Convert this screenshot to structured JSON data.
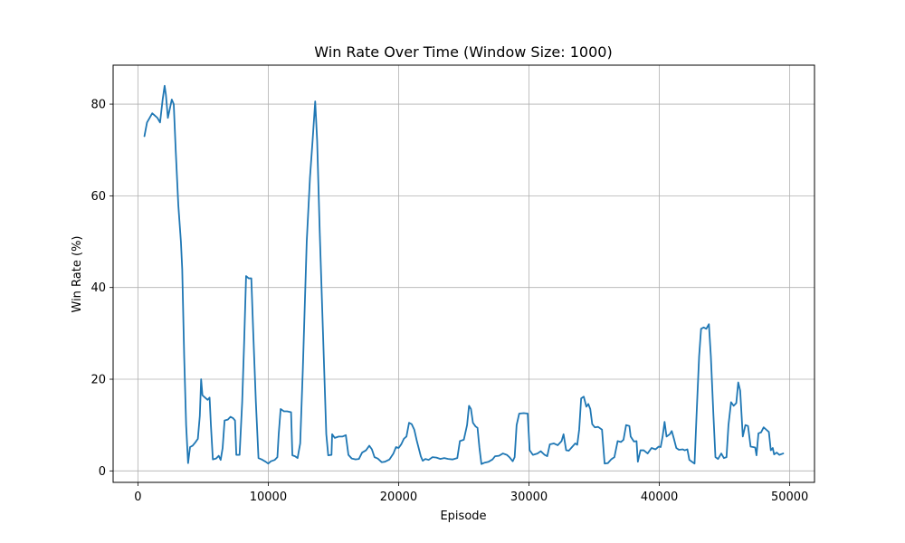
{
  "chart_data": {
    "type": "line",
    "title": "Win Rate Over Time (Window Size: 1000)",
    "xlabel": "Episode",
    "ylabel": "Win Rate (%)",
    "xlim": [
      -1900,
      51900
    ],
    "ylim": [
      -2.5,
      88.5
    ],
    "xticks": [
      0,
      10000,
      20000,
      30000,
      40000,
      50000
    ],
    "yticks": [
      0,
      20,
      40,
      60,
      80
    ],
    "grid": true,
    "line_color": "#1f77b4",
    "series": [
      {
        "name": "",
        "points": [
          [
            500,
            73
          ],
          [
            700,
            76
          ],
          [
            900,
            77
          ],
          [
            1100,
            78
          ],
          [
            1300,
            77.5
          ],
          [
            1500,
            77
          ],
          [
            1700,
            76
          ],
          [
            1900,
            81
          ],
          [
            2050,
            84
          ],
          [
            2150,
            82
          ],
          [
            2300,
            77
          ],
          [
            2450,
            79
          ],
          [
            2600,
            81
          ],
          [
            2750,
            80
          ],
          [
            2900,
            70
          ],
          [
            3100,
            58
          ],
          [
            3300,
            50
          ],
          [
            3400,
            44
          ],
          [
            3550,
            25
          ],
          [
            3700,
            10
          ],
          [
            3850,
            1.7
          ],
          [
            4000,
            5.2
          ],
          [
            4200,
            5.5
          ],
          [
            4400,
            6.2
          ],
          [
            4600,
            7
          ],
          [
            4750,
            12
          ],
          [
            4850,
            20
          ],
          [
            4950,
            16.5
          ],
          [
            5150,
            16
          ],
          [
            5350,
            15.5
          ],
          [
            5500,
            16
          ],
          [
            5600,
            10
          ],
          [
            5750,
            2.5
          ],
          [
            6000,
            2.7
          ],
          [
            6200,
            3.3
          ],
          [
            6350,
            2.4
          ],
          [
            6500,
            5
          ],
          [
            6650,
            11
          ],
          [
            6900,
            11.2
          ],
          [
            7100,
            11.8
          ],
          [
            7300,
            11.5
          ],
          [
            7450,
            11
          ],
          [
            7550,
            3.5
          ],
          [
            7800,
            3.5
          ],
          [
            8000,
            15
          ],
          [
            8150,
            28
          ],
          [
            8300,
            42.5
          ],
          [
            8500,
            42
          ],
          [
            8700,
            42
          ],
          [
            8850,
            30
          ],
          [
            9050,
            15
          ],
          [
            9250,
            2.8
          ],
          [
            9500,
            2.5
          ],
          [
            9800,
            2
          ],
          [
            10000,
            1.6
          ],
          [
            10200,
            2.1
          ],
          [
            10500,
            2.4
          ],
          [
            10700,
            3
          ],
          [
            10800,
            8
          ],
          [
            10950,
            13.5
          ],
          [
            11200,
            13
          ],
          [
            11450,
            13
          ],
          [
            11750,
            12.8
          ],
          [
            11850,
            3.4
          ],
          [
            12050,
            3.2
          ],
          [
            12250,
            2.8
          ],
          [
            12450,
            6
          ],
          [
            12650,
            22
          ],
          [
            12950,
            50
          ],
          [
            13200,
            64
          ],
          [
            13400,
            72
          ],
          [
            13600,
            80.6
          ],
          [
            13750,
            72
          ],
          [
            13950,
            52
          ],
          [
            14200,
            30
          ],
          [
            14450,
            8
          ],
          [
            14600,
            3.4
          ],
          [
            14850,
            3.5
          ],
          [
            14900,
            8
          ],
          [
            15100,
            7.2
          ],
          [
            15400,
            7.5
          ],
          [
            15700,
            7.5
          ],
          [
            15950,
            7.8
          ],
          [
            16150,
            3.5
          ],
          [
            16400,
            2.7
          ],
          [
            16700,
            2.5
          ],
          [
            16950,
            2.6
          ],
          [
            17200,
            4
          ],
          [
            17500,
            4.5
          ],
          [
            17750,
            5.5
          ],
          [
            17950,
            4.7
          ],
          [
            18150,
            3
          ],
          [
            18400,
            2.7
          ],
          [
            18700,
            1.9
          ],
          [
            18950,
            2
          ],
          [
            19300,
            2.5
          ],
          [
            19600,
            3.8
          ],
          [
            19800,
            5.2
          ],
          [
            20000,
            5
          ],
          [
            20200,
            5.8
          ],
          [
            20400,
            7
          ],
          [
            20600,
            7.5
          ],
          [
            20800,
            10.5
          ],
          [
            21000,
            10.2
          ],
          [
            21200,
            9
          ],
          [
            21400,
            6.5
          ],
          [
            21700,
            3.2
          ],
          [
            21850,
            2.2
          ],
          [
            22050,
            2.6
          ],
          [
            22300,
            2.4
          ],
          [
            22600,
            3
          ],
          [
            22900,
            2.9
          ],
          [
            23200,
            2.6
          ],
          [
            23500,
            2.8
          ],
          [
            23800,
            2.6
          ],
          [
            24150,
            2.5
          ],
          [
            24500,
            2.8
          ],
          [
            24700,
            6.5
          ],
          [
            25000,
            6.8
          ],
          [
            25250,
            10
          ],
          [
            25400,
            14.2
          ],
          [
            25550,
            13.5
          ],
          [
            25700,
            10.5
          ],
          [
            25900,
            9.7
          ],
          [
            26050,
            9.4
          ],
          [
            26200,
            5
          ],
          [
            26350,
            1.5
          ],
          [
            26600,
            1.8
          ],
          [
            26900,
            2
          ],
          [
            27200,
            2.5
          ],
          [
            27400,
            3.2
          ],
          [
            27700,
            3.3
          ],
          [
            28000,
            3.8
          ],
          [
            28300,
            3.5
          ],
          [
            28500,
            3
          ],
          [
            28750,
            2.1
          ],
          [
            28900,
            3
          ],
          [
            29050,
            10
          ],
          [
            29250,
            12.5
          ],
          [
            29600,
            12.6
          ],
          [
            29900,
            12.5
          ],
          [
            30050,
            4.5
          ],
          [
            30300,
            3.5
          ],
          [
            30650,
            3.8
          ],
          [
            30900,
            4.3
          ],
          [
            31200,
            3.5
          ],
          [
            31400,
            3.2
          ],
          [
            31600,
            5.8
          ],
          [
            31900,
            6
          ],
          [
            32200,
            5.6
          ],
          [
            32500,
            6.5
          ],
          [
            32650,
            8
          ],
          [
            32850,
            4.5
          ],
          [
            33050,
            4.4
          ],
          [
            33300,
            5.2
          ],
          [
            33550,
            6
          ],
          [
            33700,
            5.7
          ],
          [
            33850,
            9
          ],
          [
            34000,
            15.8
          ],
          [
            34200,
            16.2
          ],
          [
            34400,
            14
          ],
          [
            34550,
            14.6
          ],
          [
            34700,
            13.5
          ],
          [
            34850,
            10.2
          ],
          [
            35050,
            9.5
          ],
          [
            35300,
            9.6
          ],
          [
            35600,
            9
          ],
          [
            35800,
            1.6
          ],
          [
            36050,
            1.7
          ],
          [
            36300,
            2.5
          ],
          [
            36550,
            3
          ],
          [
            36800,
            6.5
          ],
          [
            37050,
            6.3
          ],
          [
            37250,
            6.8
          ],
          [
            37450,
            10
          ],
          [
            37700,
            9.8
          ],
          [
            37800,
            7.5
          ],
          [
            38050,
            6.4
          ],
          [
            38250,
            6.5
          ],
          [
            38350,
            2
          ],
          [
            38550,
            4.5
          ],
          [
            38800,
            4.5
          ],
          [
            39100,
            3.8
          ],
          [
            39400,
            5
          ],
          [
            39700,
            4.7
          ],
          [
            39950,
            5.3
          ],
          [
            40100,
            5.2
          ],
          [
            40250,
            7.5
          ],
          [
            40400,
            10.7
          ],
          [
            40550,
            7.5
          ],
          [
            40800,
            8
          ],
          [
            40950,
            8.7
          ],
          [
            41100,
            7.2
          ],
          [
            41300,
            5
          ],
          [
            41500,
            4.6
          ],
          [
            41800,
            4.7
          ],
          [
            41950,
            4.5
          ],
          [
            42150,
            4.7
          ],
          [
            42300,
            2.4
          ],
          [
            42550,
            1.9
          ],
          [
            42700,
            1.6
          ],
          [
            42850,
            12
          ],
          [
            43050,
            25
          ],
          [
            43200,
            31
          ],
          [
            43400,
            31.3
          ],
          [
            43600,
            31
          ],
          [
            43800,
            32
          ],
          [
            43950,
            25
          ],
          [
            44150,
            12
          ],
          [
            44300,
            3
          ],
          [
            44500,
            2.6
          ],
          [
            44750,
            3.8
          ],
          [
            44950,
            2.8
          ],
          [
            45150,
            3
          ],
          [
            45300,
            10
          ],
          [
            45500,
            15
          ],
          [
            45700,
            14.2
          ],
          [
            45900,
            14.8
          ],
          [
            46050,
            19.3
          ],
          [
            46200,
            17.5
          ],
          [
            46400,
            7.5
          ],
          [
            46600,
            10
          ],
          [
            46800,
            9.8
          ],
          [
            47000,
            5.3
          ],
          [
            47200,
            5.2
          ],
          [
            47350,
            5.1
          ],
          [
            47450,
            3.4
          ],
          [
            47600,
            8.2
          ],
          [
            47800,
            8.4
          ],
          [
            48000,
            9.5
          ],
          [
            48200,
            9
          ],
          [
            48400,
            8.5
          ],
          [
            48550,
            4.5
          ],
          [
            48700,
            5
          ],
          [
            48800,
            3.6
          ],
          [
            49000,
            4
          ],
          [
            49200,
            3.5
          ],
          [
            49500,
            3.8
          ]
        ]
      }
    ]
  }
}
